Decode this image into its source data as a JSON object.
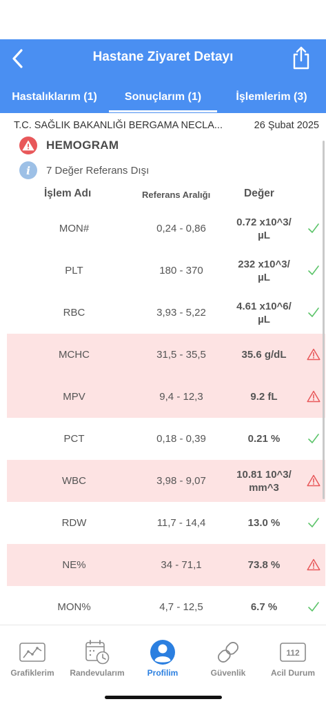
{
  "header": {
    "title": "Hastane Ziyaret Detayı",
    "back_icon": "chevron-left-icon",
    "share_icon": "share-icon"
  },
  "tabs": [
    {
      "label": "Hastalıklarım (1)",
      "active": false
    },
    {
      "label": "Sonuçlarım (1)",
      "active": true
    },
    {
      "label": "İşlemlerim (3)",
      "active": false
    }
  ],
  "visit": {
    "hospital": "T.C. SAĞLIK BAKANLIĞI BERGAMA NECLA...",
    "date": "26 Şubat 2025"
  },
  "group": {
    "title": "HEMOGRAM",
    "info": "7 Değer Referans Dışı"
  },
  "table": {
    "headers": {
      "name": "İşlem Adı",
      "reference": "Referans Aralığı",
      "value": "Değer"
    },
    "rows": [
      {
        "name": "MON#",
        "reference": "0,24 - 0,86",
        "value_line1": "0.72 x10^3/",
        "value_line2": "µL",
        "status": "normal"
      },
      {
        "name": "PLT",
        "reference": "180 - 370",
        "value_line1": "232 x10^3/",
        "value_line2": "µL",
        "status": "normal"
      },
      {
        "name": "RBC",
        "reference": "3,93 - 5,22",
        "value_line1": "4.61 x10^6/",
        "value_line2": "µL",
        "status": "normal"
      },
      {
        "name": "MCHC",
        "reference": "31,5 - 35,5",
        "value_line1": "35.6 g/dL",
        "value_line2": "",
        "status": "alert"
      },
      {
        "name": "MPV",
        "reference": "9,4 - 12,3",
        "value_line1": "9.2 fL",
        "value_line2": "",
        "status": "alert"
      },
      {
        "name": "PCT",
        "reference": "0,18 - 0,39",
        "value_line1": "0.21 %",
        "value_line2": "",
        "status": "normal"
      },
      {
        "name": "WBC",
        "reference": "3,98 - 9,07",
        "value_line1": "10.81 10^3/",
        "value_line2": "mm^3",
        "status": "alert"
      },
      {
        "name": "RDW",
        "reference": "11,7 - 14,4",
        "value_line1": "13.0 %",
        "value_line2": "",
        "status": "normal"
      },
      {
        "name": "NE%",
        "reference": "34 - 71,1",
        "value_line1": "73.8 %",
        "value_line2": "",
        "status": "alert"
      },
      {
        "name": "MON%",
        "reference": "4,7 - 12,5",
        "value_line1": "6.7 %",
        "value_line2": "",
        "status": "normal"
      }
    ]
  },
  "bottom_nav": [
    {
      "label": "Grafiklerim",
      "icon": "chart-icon",
      "active": false
    },
    {
      "label": "Randevularım",
      "icon": "calendar-clock-icon",
      "active": false
    },
    {
      "label": "Profilim",
      "icon": "profile-icon",
      "active": true
    },
    {
      "label": "Güvenlik",
      "icon": "link-icon",
      "active": false
    },
    {
      "label": "Acil Durum",
      "icon": "emergency-112-icon",
      "active": false,
      "badge_text": "112"
    }
  ],
  "colors": {
    "primary": "#4a8ff2",
    "alert_row_bg": "#fde3e3",
    "alert_icon": "#e8585a",
    "ok_check": "#5cc46a",
    "nav_active": "#2b7fe0",
    "nav_inactive": "#8a8a8a"
  }
}
